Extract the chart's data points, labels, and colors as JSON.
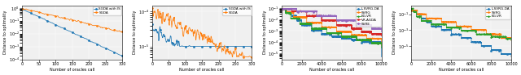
{
  "fig1": {
    "xlabel": "Number of oracles call",
    "ylabel": "Distance to optimality",
    "legend": [
      "SGDA with IS",
      "SGDA"
    ],
    "colors": [
      "#1f77b4",
      "#ff7f0e"
    ],
    "markers": [
      "s",
      "o"
    ],
    "xmax": 300,
    "ylim": [
      0.0001,
      1.0
    ]
  },
  "fig2": {
    "xlabel": "Number of oracles call",
    "ylabel": "Distance to optimality",
    "legend": [
      "SGDA with IS",
      "SGDA"
    ],
    "colors": [
      "#1f77b4",
      "#ff7f0e"
    ],
    "markers": [
      "s",
      "o"
    ],
    "xmax": 300,
    "ylim": [
      0.0001,
      1e-06
    ]
  },
  "fig3": {
    "xlabel": "Number of oracles call",
    "ylabel": "Distance to optimality",
    "legend": [
      "L-SVRG-DA",
      "SVRG",
      "EG-VR",
      "VR-AGDA",
      "SVRE"
    ],
    "colors": [
      "#1f77b4",
      "#ff7f0e",
      "#2ca02c",
      "#d62728",
      "#9467bd"
    ],
    "markers": [
      "s",
      "o",
      "^",
      "s",
      "D"
    ],
    "xmax": 10000,
    "ylim": [
      1e-05,
      0.1
    ]
  },
  "fig4": {
    "xlabel": "Number of oracles call",
    "ylabel": "Distance to optimality",
    "legend": [
      "L-SVRG-DA",
      "SVRG",
      "EG-VR"
    ],
    "colors": [
      "#1f77b4",
      "#ff7f0e",
      "#2ca02c"
    ],
    "markers": [
      "s",
      "o",
      "^"
    ],
    "xmax": 10000,
    "ylim": [
      1e-07,
      0.5
    ]
  }
}
